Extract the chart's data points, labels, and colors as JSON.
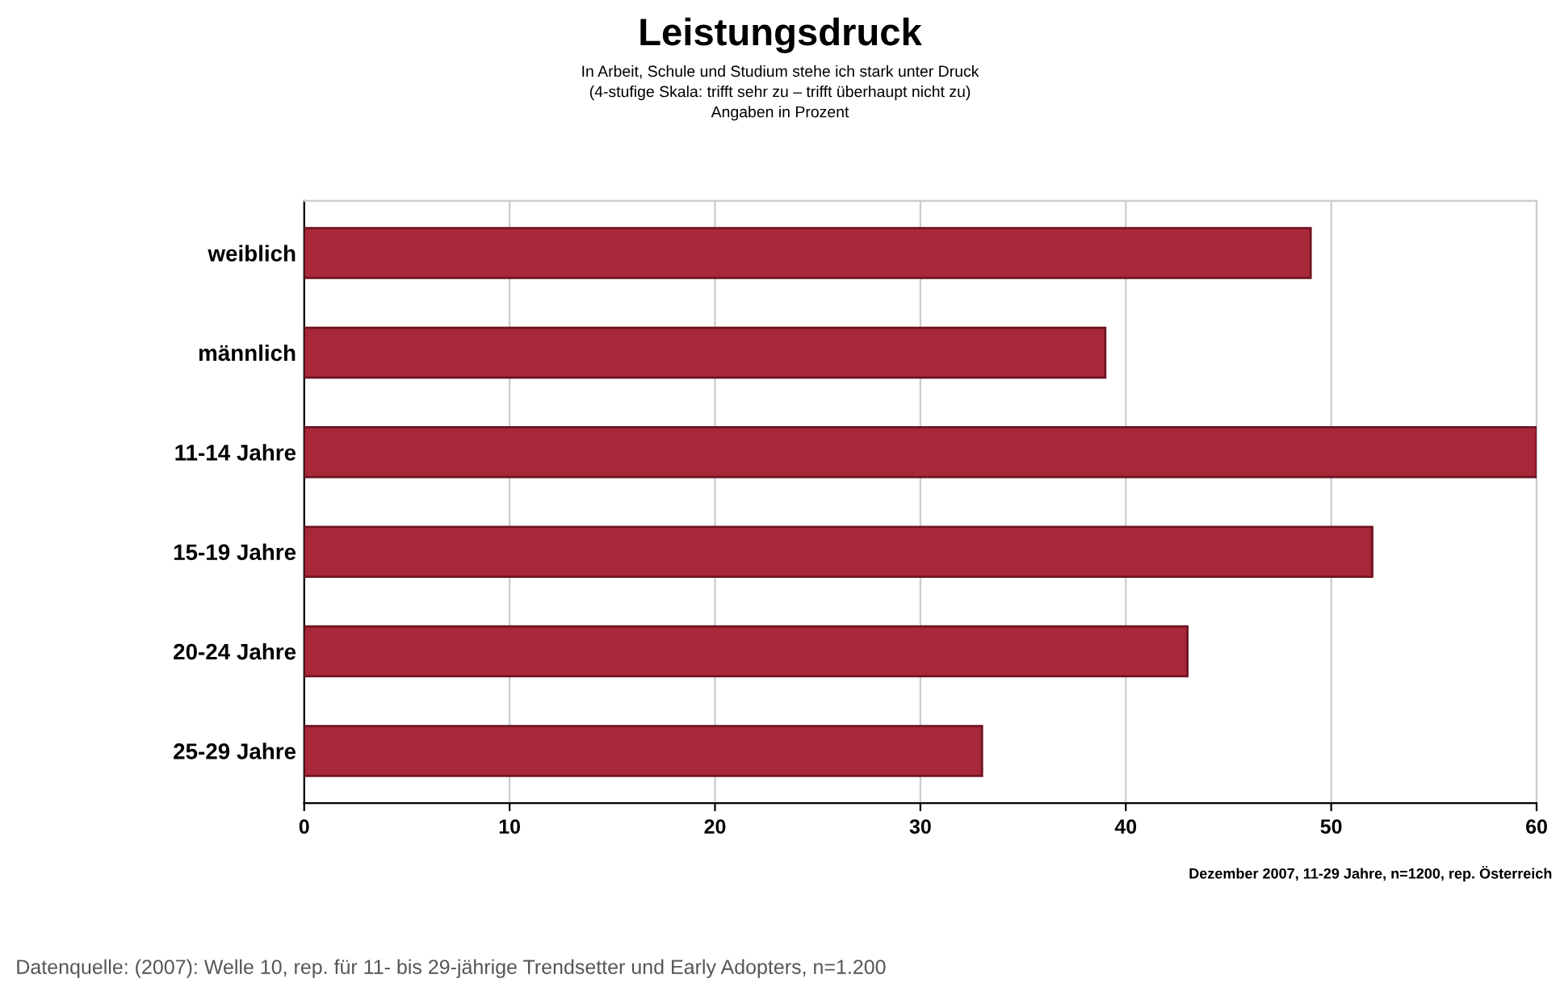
{
  "chart_data": {
    "type": "bar",
    "orientation": "horizontal",
    "title": "Leistungsdruck",
    "subtitle": "In Arbeit, Schule und Studium stehe ich stark unter Druck\n(4-stufige Skala: trifft sehr zu – trifft überhaupt nicht zu)\nAngaben in Prozent",
    "categories": [
      "weiblich",
      "männlich",
      "11-14 Jahre",
      "15-19 Jahre",
      "20-24 Jahre",
      "25-29 Jahre"
    ],
    "values": [
      49,
      39,
      60,
      52,
      43,
      33
    ],
    "color": "#a8283a",
    "xlim": [
      0,
      60
    ],
    "xticks": [
      0,
      10,
      20,
      30,
      40,
      50,
      60
    ],
    "grid": "x",
    "annotations": [
      "Dezember 2007, 11-29 Jahre, n=1200, rep. Österreich",
      "Datenquelle: (2007): Welle 10, rep. für 11- bis 29-jährige Trendsetter und Early Adopters, n=1.200"
    ]
  }
}
